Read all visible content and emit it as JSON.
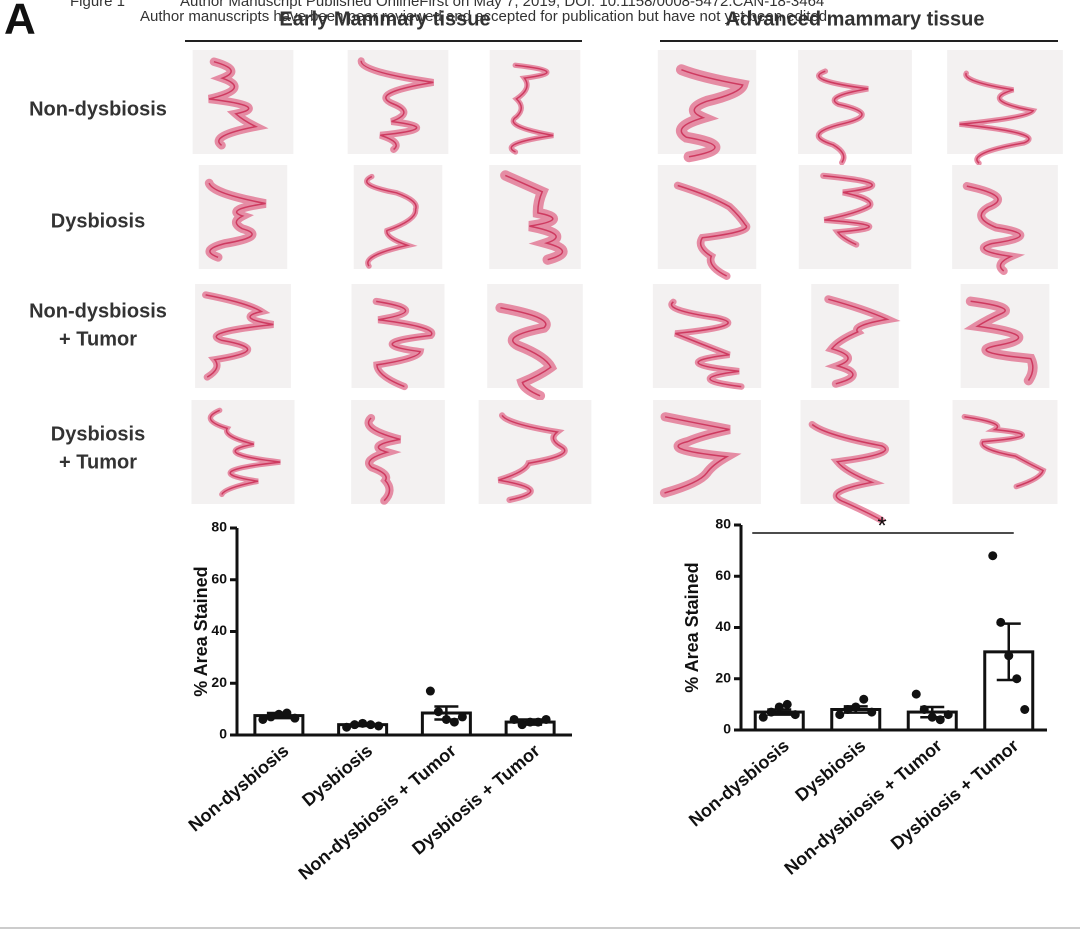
{
  "header": {
    "figure": "Figure 1",
    "line1": "Author Manuscript Published OnlineFirst on May 7, 2019; DOI: 10.1158/0008-5472.CAN-18-3464",
    "line2": "Author manuscripts have been peer reviewed and accepted for publication but have not yet been edited."
  },
  "panel_label": "A",
  "columns": [
    "Early Mammary tissue",
    "Advanced mammary tissue"
  ],
  "rows": [
    [
      "Non-dysbiosis"
    ],
    [
      "Dysbiosis"
    ],
    [
      "Non-dysbiosis",
      "+ Tumor"
    ],
    [
      "Dysbiosis",
      "+ Tumor"
    ]
  ],
  "chart_data": [
    {
      "type": "bar",
      "y_label": "% Area Stained",
      "categories": [
        "Non-dysbiosis",
        "Dysbiosis",
        "Non-dysbiosis + Tumor",
        "Dysbiosis + Tumor"
      ],
      "values": [
        7.5,
        4,
        8.5,
        5
      ],
      "errors": [
        1,
        0.5,
        2.5,
        1
      ],
      "points": [
        [
          6,
          7,
          8,
          8.5,
          6.5
        ],
        [
          3,
          4,
          4.5,
          4,
          3.5
        ],
        [
          17,
          9,
          6,
          5,
          7
        ],
        [
          6,
          4,
          5,
          5,
          6
        ]
      ],
      "color": "#ffffff",
      "ylim": [
        0,
        80
      ],
      "yticks": [
        0,
        20,
        40,
        60,
        80
      ]
    },
    {
      "type": "bar",
      "y_label": "% Area Stained",
      "categories": [
        "Non-dysbiosis",
        "Dysbiosis",
        "Non-dysbiosis + Tumor",
        "Dysbiosis + Tumor"
      ],
      "values": [
        7,
        8,
        7,
        30.5
      ],
      "errors": [
        1,
        1.2,
        2,
        11
      ],
      "points": [
        [
          5,
          7,
          9,
          10,
          6
        ],
        [
          6,
          8,
          9,
          12,
          7
        ],
        [
          14,
          8,
          5,
          4,
          6
        ],
        [
          68,
          42,
          29,
          20,
          8
        ]
      ],
      "color": "#ffffff",
      "ylim": [
        0,
        80
      ],
      "yticks": [
        0,
        20,
        40,
        60,
        80
      ],
      "significance": {
        "label": "*",
        "between": [
          "Non-dysbiosis",
          "Dysbiosis + Tumor"
        ]
      }
    }
  ]
}
